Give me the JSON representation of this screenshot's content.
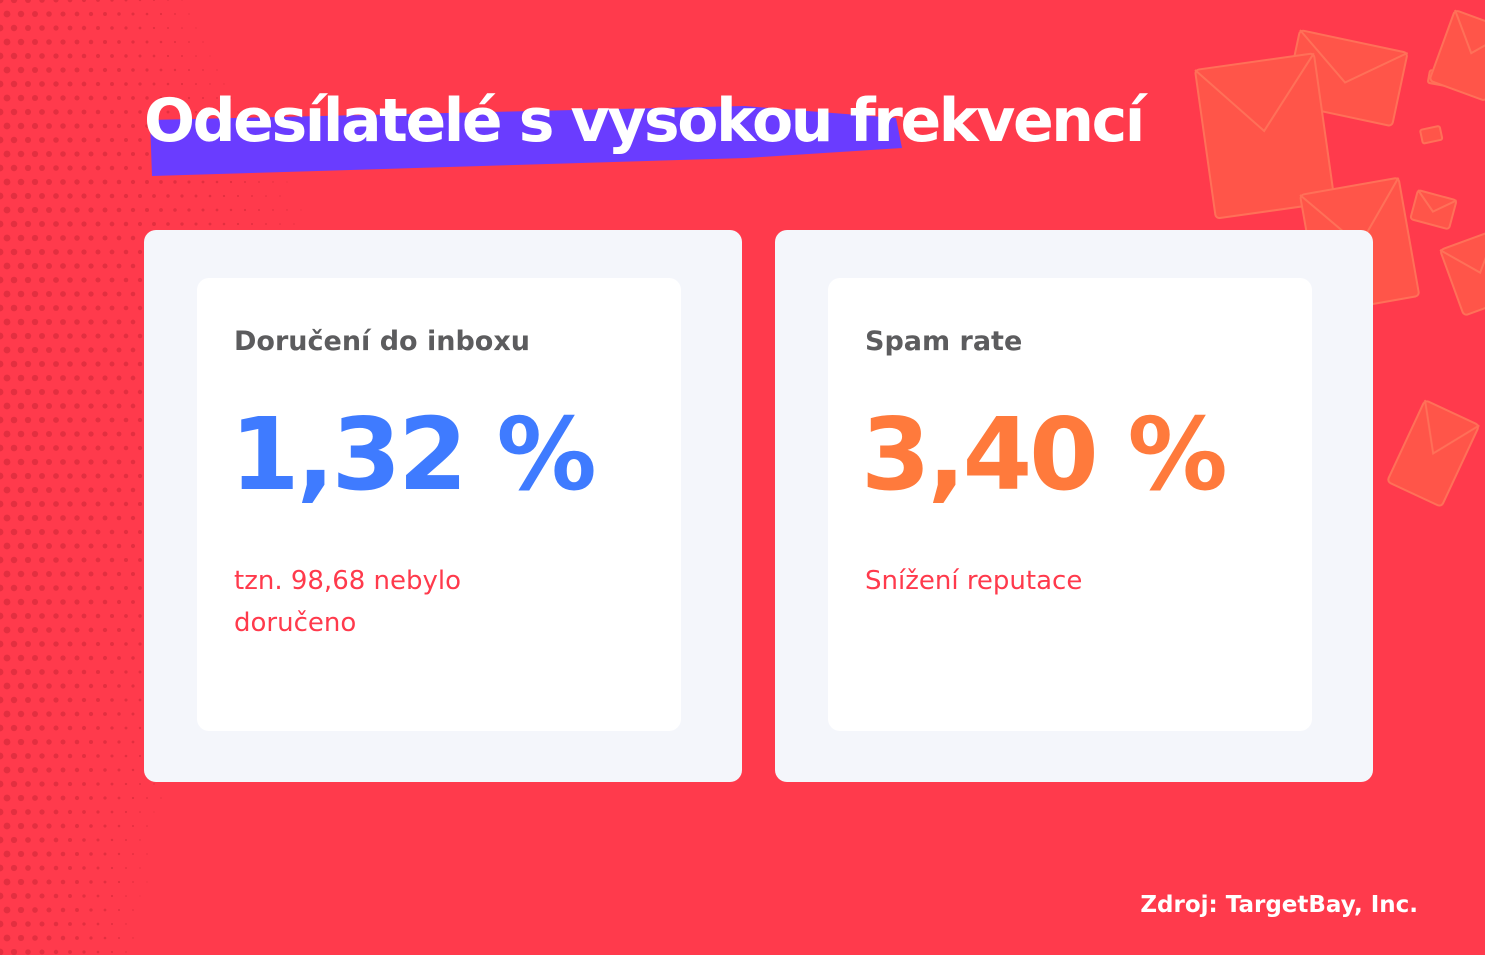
{
  "title": "Odesílatelé s vysokou frekvencí",
  "colors": {
    "background": "#ff3a4c",
    "title_highlight": "#6a3cff",
    "card_outer": "#f4f6fb",
    "card_inner": "#ffffff",
    "label": "#5c5c5e",
    "value_inbox": "#3f7bff",
    "value_spam": "#ff7a3c",
    "note": "#ff3a4c"
  },
  "decorations": {
    "left_pattern": "dot-pattern",
    "right_pattern": "envelope-icons"
  },
  "cards": [
    {
      "label": "Doručení do inboxu",
      "value": "1,32 %",
      "note": "tzn. 98,68 nebylo doručeno"
    },
    {
      "label": "Spam rate",
      "value": "3,40 %",
      "note": "Snížení reputace"
    }
  ],
  "source": "Zdroj: TargetBay, Inc."
}
